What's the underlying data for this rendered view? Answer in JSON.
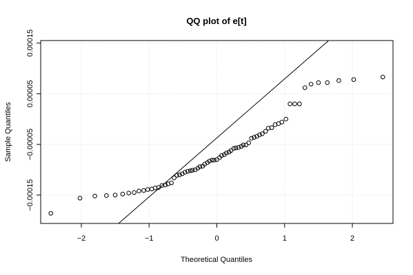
{
  "chart_data": {
    "type": "scatter",
    "title": "QQ plot of e[t]",
    "xlabel": "Theoretical Quantiles",
    "ylabel": "Sample Quantiles",
    "xlim": [
      -2.6,
      2.6
    ],
    "ylim": [
      -0.000206,
      0.000155
    ],
    "x_ticks": [
      -2,
      -1,
      0,
      1,
      2
    ],
    "x_tick_labels": [
      "−2",
      "−1",
      "0",
      "1",
      "2"
    ],
    "y_ticks": [
      -0.00015,
      -5e-05,
      5e-05,
      0.00015
    ],
    "y_tick_labels": [
      "−0.00015",
      "−0.00005",
      "0.00005",
      "0.00015"
    ],
    "grid": true,
    "reference_line": {
      "x": [
        -1.45,
        1.65
      ],
      "y": [
        -0.000206,
        0.000155
      ]
    },
    "points": [
      [
        -2.45,
        -0.000186
      ],
      [
        -2.02,
        -0.000156
      ],
      [
        -1.8,
        -0.000152
      ],
      [
        -1.63,
        -0.000151
      ],
      [
        -1.5,
        -0.00015
      ],
      [
        -1.39,
        -0.000148
      ],
      [
        -1.3,
        -0.000146
      ],
      [
        -1.22,
        -0.000145
      ],
      [
        -1.15,
        -0.000142
      ],
      [
        -1.08,
        -0.000141
      ],
      [
        -1.02,
        -0.000139
      ],
      [
        -0.96,
        -0.000138
      ],
      [
        -0.91,
        -0.000136
      ],
      [
        -0.86,
        -0.000135
      ],
      [
        -0.81,
        -0.000131
      ],
      [
        -0.76,
        -0.00013
      ],
      [
        -0.72,
        -0.000128
      ],
      [
        -0.67,
        -0.000126
      ],
      [
        -0.63,
        -0.000116
      ],
      [
        -0.59,
        -0.000111
      ],
      [
        -0.55,
        -0.00011
      ],
      [
        -0.51,
        -0.000108
      ],
      [
        -0.47,
        -0.000105
      ],
      [
        -0.43,
        -0.000103
      ],
      [
        -0.39,
        -0.000102
      ],
      [
        -0.36,
        -0.000101
      ],
      [
        -0.32,
        -0.0001
      ],
      [
        -0.28,
        -9.7e-05
      ],
      [
        -0.25,
        -9.4e-05
      ],
      [
        -0.21,
        -9.3e-05
      ],
      [
        -0.18,
        -8.9e-05
      ],
      [
        -0.14,
        -8.6e-05
      ],
      [
        -0.11,
        -8.3e-05
      ],
      [
        -0.07,
        -8.1e-05
      ],
      [
        -0.04,
        -8.1e-05
      ],
      [
        0.0,
        -8e-05
      ],
      [
        0.04,
        -7.6e-05
      ],
      [
        0.07,
        -7.2e-05
      ],
      [
        0.11,
        -7e-05
      ],
      [
        0.14,
        -6.7e-05
      ],
      [
        0.18,
        -6.5e-05
      ],
      [
        0.21,
        -6.2e-05
      ],
      [
        0.25,
        -5.8e-05
      ],
      [
        0.28,
        -5.7e-05
      ],
      [
        0.32,
        -5.6e-05
      ],
      [
        0.36,
        -5.4e-05
      ],
      [
        0.39,
        -5.1e-05
      ],
      [
        0.43,
        -5.1e-05
      ],
      [
        0.47,
        -4.7e-05
      ],
      [
        0.51,
        -3.8e-05
      ],
      [
        0.55,
        -3.6e-05
      ],
      [
        0.59,
        -3.4e-05
      ],
      [
        0.63,
        -3.1e-05
      ],
      [
        0.67,
        -2.9e-05
      ],
      [
        0.72,
        -2.4e-05
      ],
      [
        0.76,
        -1.8e-05
      ],
      [
        0.81,
        -1.7e-05
      ],
      [
        0.86,
        -1.1e-05
      ],
      [
        0.91,
        -9e-06
      ],
      [
        0.96,
        -6e-06
      ],
      [
        1.02,
        0.0
      ],
      [
        1.08,
        3e-05
      ],
      [
        1.15,
        3e-05
      ],
      [
        1.22,
        3e-05
      ],
      [
        1.3,
        6.2e-05
      ],
      [
        1.39,
        6.9e-05
      ],
      [
        1.5,
        7.2e-05
      ],
      [
        1.63,
        7.2e-05
      ],
      [
        1.8,
        7.6e-05
      ],
      [
        2.02,
        7.8e-05
      ],
      [
        2.45,
        8.3e-05
      ]
    ]
  }
}
